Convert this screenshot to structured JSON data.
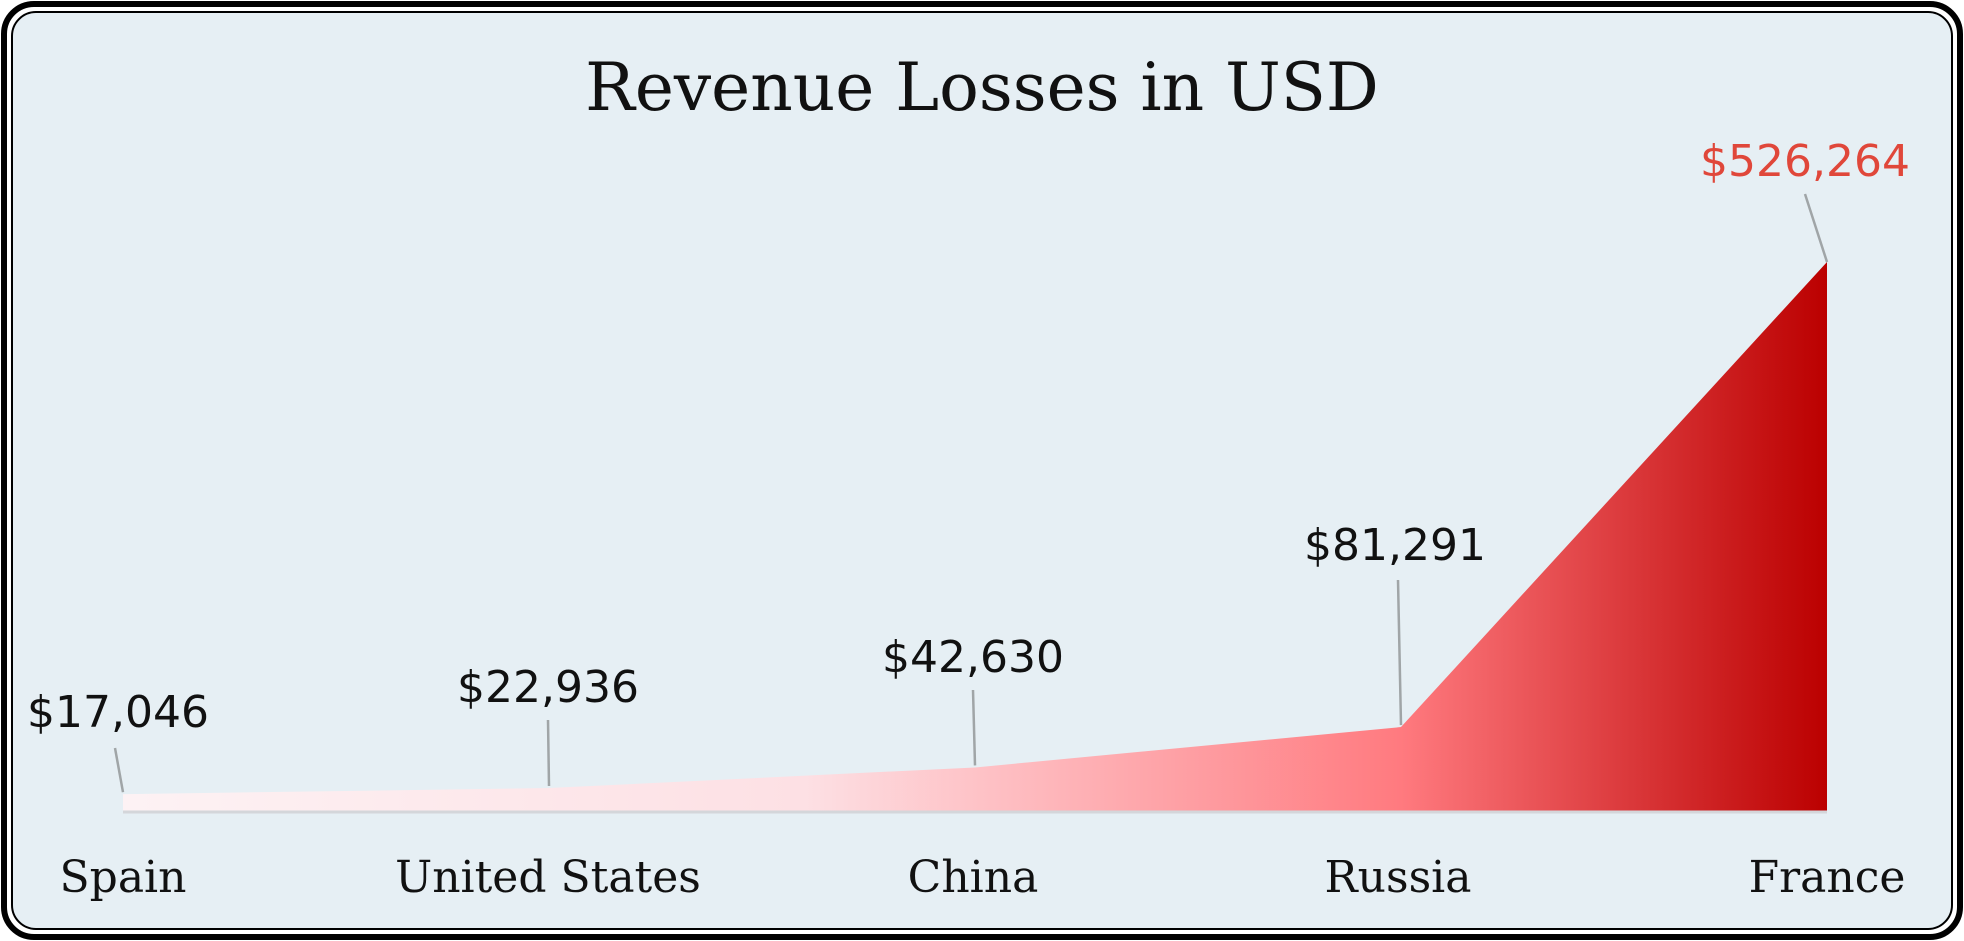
{
  "chart_data": {
    "type": "area",
    "title": "Revenue Losses in USD",
    "categories": [
      "Spain",
      "United States",
      "China",
      "Russia",
      "France"
    ],
    "values": [
      17046,
      22936,
      42630,
      81291,
      526264
    ],
    "value_labels": [
      "$17,046",
      "$22,936",
      "$42,630",
      "$81,291",
      "$526,264"
    ],
    "highlight_index": 4,
    "xlabel": "",
    "ylabel": "",
    "grid": false,
    "legend": "none",
    "colors": {
      "background": "#e6eff4",
      "border": "#000000",
      "highlight_label": "#e0473a",
      "gradient_start": "#fdf2f4",
      "gradient_mid": "#ff7a7f",
      "gradient_end": "#bb0000",
      "leader_line": "#a0a5a7"
    }
  }
}
